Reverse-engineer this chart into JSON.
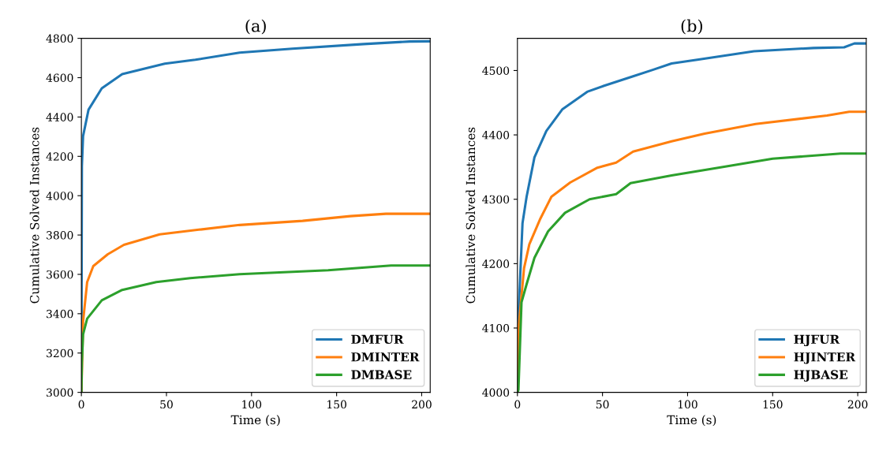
{
  "chart_data": [
    {
      "type": "line",
      "title": "(a)",
      "xlabel": "Time (s)",
      "ylabel": "Cumulative Solved Instances",
      "xlim": [
        0,
        205
      ],
      "ylim": [
        3000,
        4800
      ],
      "xticks": [
        0,
        50,
        100,
        150,
        200
      ],
      "yticks": [
        3000,
        3200,
        3400,
        3600,
        3800,
        4000,
        4200,
        4400,
        4600,
        4800
      ],
      "grid": false,
      "legend": "bottom right",
      "series": [
        {
          "name": "DMFUR",
          "color": "#1f77b4",
          "x": [
            0,
            0.3,
            1,
            4.2,
            12,
            24,
            49,
            67,
            93,
            124,
            166,
            193,
            205
          ],
          "values": [
            3000,
            4150,
            4303,
            4437,
            4546,
            4618,
            4671,
            4691,
            4727,
            4747,
            4771,
            4784,
            4785
          ]
        },
        {
          "name": "DMINTER",
          "color": "#ff7f0e",
          "x": [
            0,
            1,
            3.4,
            7,
            15.5,
            25,
            46,
            69,
            93,
            130,
            158,
            179,
            205
          ],
          "values": [
            3000,
            3360,
            3561,
            3642,
            3702,
            3750,
            3803,
            3827,
            3851,
            3872,
            3896,
            3908,
            3908
          ]
        },
        {
          "name": "DMBASE",
          "color": "#2ca02c",
          "x": [
            0,
            0.3,
            1,
            3.4,
            12,
            24,
            44,
            64,
            93,
            145,
            182,
            205
          ],
          "values": [
            3000,
            3150,
            3295,
            3375,
            3468,
            3521,
            3561,
            3581,
            3601,
            3621,
            3645,
            3645
          ]
        }
      ]
    },
    {
      "type": "line",
      "title": "(b)",
      "xlabel": "Time (s)",
      "ylabel": "Cumulative Solved Instances",
      "xlim": [
        0,
        205
      ],
      "ylim": [
        4000,
        4550
      ],
      "xticks": [
        0,
        50,
        100,
        150,
        200
      ],
      "yticks": [
        4000,
        4100,
        4200,
        4300,
        4400,
        4500
      ],
      "grid": false,
      "legend": "bottom right",
      "series": [
        {
          "name": "HJFUR",
          "color": "#1f77b4",
          "x": [
            0,
            0.6,
            3,
            5.4,
            10,
            17,
            26.5,
            41,
            50.6,
            68,
            79.5,
            90.6,
            106.5,
            139,
            174,
            192,
            198,
            205
          ],
          "values": [
            4000,
            4118,
            4263,
            4304,
            4365,
            4406,
            4440,
            4467,
            4476,
            4491,
            4501,
            4511,
            4517,
            4530,
            4535,
            4536,
            4542,
            4542
          ]
        },
        {
          "name": "HJINTER",
          "color": "#ff7f0e",
          "x": [
            0,
            0.6,
            3.9,
            7,
            13.5,
            20,
            31,
            47,
            58,
            68,
            90.6,
            110,
            140,
            182,
            195,
            205
          ],
          "values": [
            4000,
            4098,
            4193,
            4230,
            4270,
            4304,
            4326,
            4349,
            4357,
            4374,
            4390,
            4402,
            4417,
            4430,
            4436,
            4436
          ]
        },
        {
          "name": "HJBASE",
          "color": "#2ca02c",
          "x": [
            0,
            0.6,
            2.4,
            5.4,
            10,
            18,
            28,
            42.4,
            58,
            66.5,
            90.6,
            118,
            150,
            190,
            205
          ],
          "values": [
            4000,
            4004,
            4140,
            4168,
            4209,
            4250,
            4279,
            4300,
            4308,
            4325,
            4337,
            4349,
            4363,
            4371,
            4371
          ]
        }
      ]
    }
  ]
}
